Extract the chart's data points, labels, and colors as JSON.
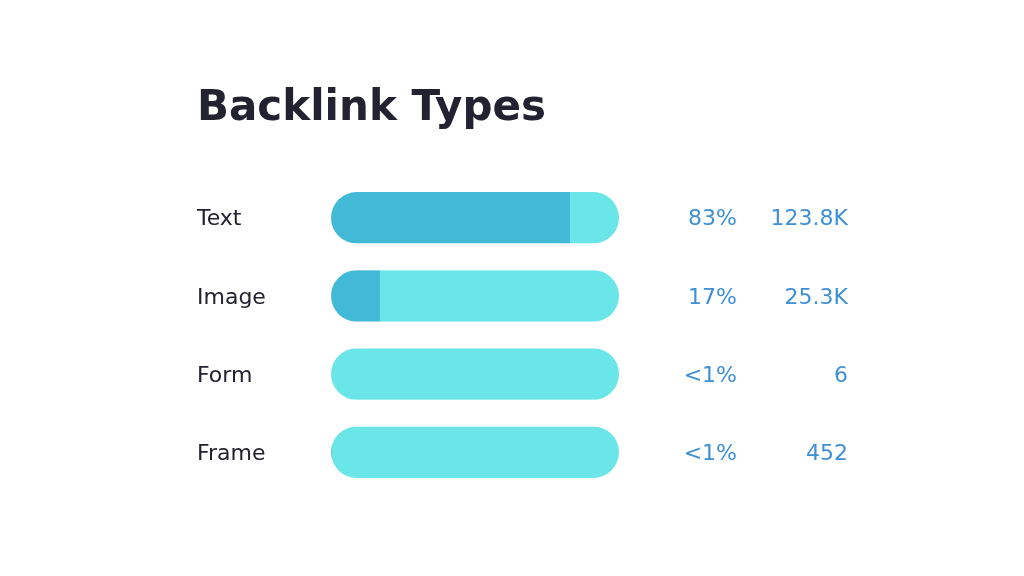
{
  "chart_data": {
    "type": "bar",
    "orientation": "horizontal",
    "stacked": true,
    "title": "Backlink Types",
    "categories": [
      "Text",
      "Image",
      "Form",
      "Frame"
    ],
    "series": [
      {
        "color": "#42b9d6",
        "values": [
          83,
          17,
          0.004,
          0.3
        ],
        "value_labels": [
          "83%",
          "17%",
          "<1%",
          "<1%"
        ]
      },
      {
        "color": "#6ae6e8",
        "values": [
          17,
          83,
          99.996,
          99.7
        ]
      }
    ],
    "xlim": [
      0,
      100
    ],
    "tick_labels": "y",
    "annotations": [
      "123.8K",
      "25.3K",
      "6",
      "452"
    ]
  }
}
